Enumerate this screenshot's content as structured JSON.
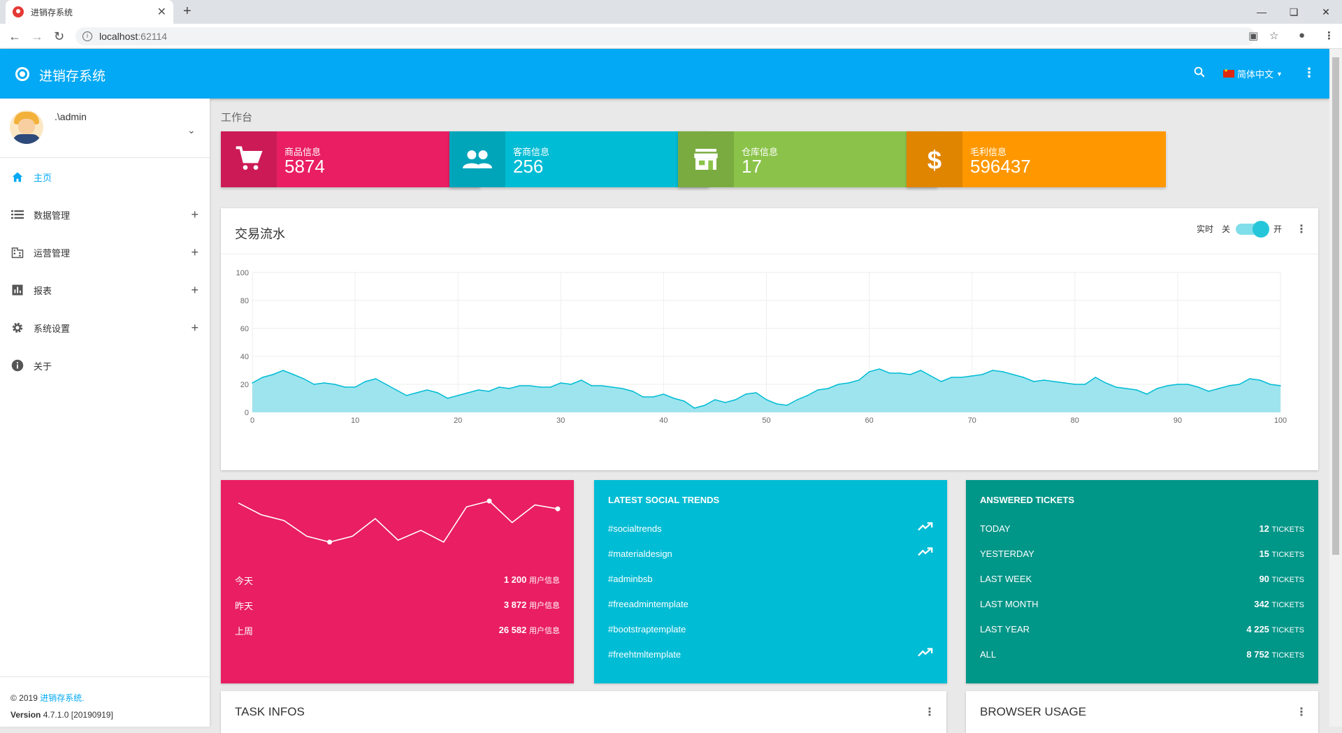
{
  "browser": {
    "tab_title": "进销存系统",
    "url_host": "localhost",
    "url_port": ":62114",
    "new_tab": "+",
    "close": "✕"
  },
  "header": {
    "title": "进销存系统",
    "language": "简体中文",
    "more": "⋮"
  },
  "user": {
    "name": ".\\admin"
  },
  "menu": [
    {
      "label": "主页",
      "icon": "home-icon",
      "expand": false
    },
    {
      "label": "数据管理",
      "icon": "list-icon",
      "expand": true
    },
    {
      "label": "运营管理",
      "icon": "building-icon",
      "expand": true
    },
    {
      "label": "报表",
      "icon": "bar-chart-icon",
      "expand": true
    },
    {
      "label": "系统设置",
      "icon": "gear-icon",
      "expand": true
    },
    {
      "label": "关于",
      "icon": "info-icon",
      "expand": false
    }
  ],
  "footer": {
    "copyright": "© 2019",
    "brand": "进销存系统.",
    "version_label": "Version",
    "version": "4.7.1.0 [20190919]"
  },
  "breadcrumb": "工作台",
  "info_boxes": [
    {
      "title": "商品信息",
      "value": "5874",
      "color": "#e91e63",
      "icon": "cart-icon"
    },
    {
      "title": "客商信息",
      "value": "256",
      "color": "#00bcd4",
      "icon": "people-icon"
    },
    {
      "title": "仓库信息",
      "value": "17",
      "color": "#8bc34a",
      "icon": "store-icon"
    },
    {
      "title": "毛利信息",
      "value": "596437",
      "color": "#ff9800",
      "icon": "dollar-icon"
    }
  ],
  "transactions": {
    "title": "交易流水",
    "realtime_label": "实时",
    "off_label": "关",
    "on_label": "开",
    "realtime_on": true
  },
  "chart_data": {
    "type": "area",
    "title": "交易流水",
    "xlim": [
      0,
      100
    ],
    "ylim": [
      0,
      100
    ],
    "x_ticks": [
      0,
      10,
      20,
      30,
      40,
      50,
      60,
      70,
      80,
      90,
      100
    ],
    "y_ticks": [
      0,
      20,
      40,
      60,
      80,
      100
    ],
    "grid": true,
    "color": "#00bcd4",
    "x": [
      0,
      1,
      2,
      3,
      4,
      5,
      6,
      7,
      8,
      9,
      10,
      11,
      12,
      13,
      14,
      15,
      16,
      17,
      18,
      19,
      20,
      21,
      22,
      23,
      24,
      25,
      26,
      27,
      28,
      29,
      30,
      31,
      32,
      33,
      34,
      35,
      36,
      37,
      38,
      39,
      40,
      41,
      42,
      43,
      44,
      45,
      46,
      47,
      48,
      49,
      50,
      51,
      52,
      53,
      54,
      55,
      56,
      57,
      58,
      59,
      60,
      61,
      62,
      63,
      64,
      65,
      66,
      67,
      68,
      69,
      70,
      71,
      72,
      73,
      74,
      75,
      76,
      77,
      78,
      79,
      80,
      81,
      82,
      83,
      84,
      85,
      86,
      87,
      88,
      89,
      90,
      91,
      92,
      93,
      94,
      95,
      96,
      97,
      98,
      99,
      100
    ],
    "values": [
      21,
      25,
      27,
      30,
      27,
      24,
      20,
      21,
      20,
      18,
      18,
      22,
      24,
      20,
      16,
      12,
      14,
      16,
      14,
      10,
      12,
      14,
      16,
      15,
      18,
      17,
      19,
      19,
      18,
      18,
      21,
      20,
      23,
      19,
      19,
      18,
      17,
      15,
      11,
      11,
      13,
      10,
      8,
      3,
      5,
      9,
      7,
      9,
      13,
      14,
      9,
      6,
      5,
      9,
      12,
      16,
      17,
      20,
      21,
      23,
      29,
      31,
      28,
      28,
      27,
      30,
      26,
      22,
      25,
      25,
      26,
      27,
      30,
      29,
      27,
      25,
      22,
      23,
      22,
      21,
      20,
      20,
      25,
      21,
      18,
      17,
      16,
      13,
      17,
      19,
      20,
      20,
      18,
      15,
      17,
      19,
      20,
      24,
      23,
      20,
      19
    ]
  },
  "panels": {
    "daily": {
      "line": [
        54,
        48,
        45,
        37,
        34,
        37,
        46,
        35,
        40,
        34,
        52,
        55,
        44,
        53,
        51
      ],
      "rows": [
        {
          "label": "今天",
          "value": "1 200",
          "unit": "用户信息"
        },
        {
          "label": "昨天",
          "value": "3 872",
          "unit": "用户信息"
        },
        {
          "label": "上周",
          "value": "26 582",
          "unit": "用户信息"
        }
      ]
    },
    "social": {
      "title": "LATEST SOCIAL TRENDS",
      "items": [
        {
          "tag": "#socialtrends",
          "trend": true
        },
        {
          "tag": "#materialdesign",
          "trend": true
        },
        {
          "tag": "#adminbsb",
          "trend": false
        },
        {
          "tag": "#freeadmintemplate",
          "trend": false
        },
        {
          "tag": "#bootstraptemplate",
          "trend": false
        },
        {
          "tag": "#freehtmltemplate",
          "trend": true
        }
      ]
    },
    "tickets": {
      "title": "ANSWERED TICKETS",
      "unit": "TICKETS",
      "rows": [
        {
          "label": "TODAY",
          "value": "12"
        },
        {
          "label": "YESTERDAY",
          "value": "15"
        },
        {
          "label": "LAST WEEK",
          "value": "90"
        },
        {
          "label": "LAST MONTH",
          "value": "342"
        },
        {
          "label": "LAST YEAR",
          "value": "4 225"
        },
        {
          "label": "ALL",
          "value": "8 752"
        }
      ]
    }
  },
  "task_infos": {
    "title": "TASK INFOS"
  },
  "browser_usage": {
    "title": "BROWSER USAGE"
  }
}
